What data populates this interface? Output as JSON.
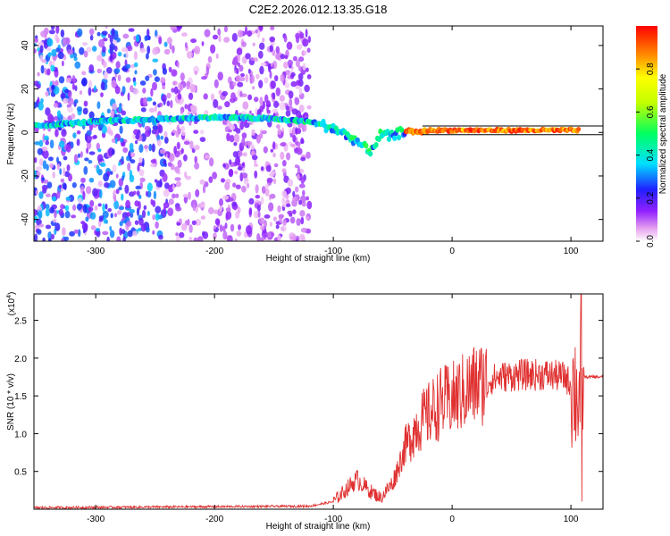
{
  "title": "C2E2.2026.012.13.35.G18",
  "chart_data": [
    {
      "type": "heatmap",
      "name": "spectrogram",
      "xlabel": "Height of straight line (km)",
      "ylabel": "Frequency (Hz)",
      "xlim": [
        -352,
        127
      ],
      "ylim": [
        -50,
        49
      ],
      "xticks": [
        -300,
        -200,
        -100,
        0,
        100
      ],
      "yticks": [
        -40,
        -20,
        0,
        20,
        40
      ],
      "colorbar": {
        "label": "Normalized spectral amplitude",
        "range": [
          0,
          1
        ],
        "ticks": [
          "0.0",
          "0.2",
          "0.4",
          "0.6",
          "0.8"
        ],
        "tick_values": [
          0,
          0.2,
          0.4,
          0.6,
          0.8
        ]
      },
      "ridge": {
        "description_points_x": [
          -352,
          -300,
          -250,
          -200,
          -160,
          -120,
          -100,
          -80,
          -70,
          -60,
          -50,
          -40,
          -30,
          -20,
          0,
          50,
          100,
          107,
          127
        ],
        "frequency_hz": [
          3,
          5,
          6,
          7,
          6.5,
          5,
          2,
          -4,
          -9,
          -1,
          -2,
          1,
          0,
          1,
          1,
          1,
          1,
          1,
          1
        ]
      }
    },
    {
      "type": "line",
      "name": "snr",
      "xlabel": "Height of straight line (km)",
      "ylabel": "SNR (10 * v/v)",
      "multiplier_label": "(x10",
      "multiplier_exp": "4",
      "xlim": [
        -352,
        127
      ],
      "ylim": [
        0,
        2.85
      ],
      "xticks": [
        -300,
        -200,
        -100,
        0,
        100
      ],
      "yticks": [
        0.5,
        1.0,
        1.5,
        2.0,
        2.5
      ],
      "ytick_labels": [
        "0.5",
        "1.0",
        "1.5",
        "2.0",
        "2.5"
      ],
      "color": "#e03030",
      "envelope": {
        "x": [
          -352,
          -120,
          -100,
          -90,
          -80,
          -70,
          -60,
          -50,
          -40,
          -30,
          -20,
          -10,
          0,
          20,
          40,
          60,
          80,
          95,
          103,
          107,
          110,
          127
        ],
        "y": [
          0.02,
          0.04,
          0.1,
          0.25,
          0.4,
          0.25,
          0.15,
          0.35,
          0.8,
          1.1,
          1.25,
          1.4,
          1.45,
          1.65,
          1.75,
          1.78,
          1.78,
          1.75,
          1.6,
          1.5,
          1.75,
          1.75
        ]
      }
    }
  ]
}
